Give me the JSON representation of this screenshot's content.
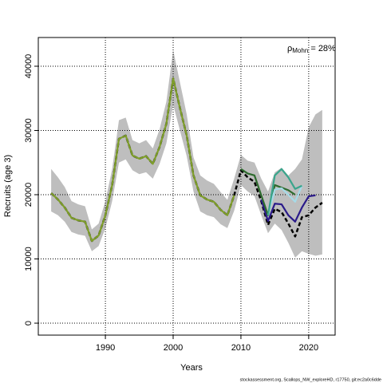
{
  "chart_data": {
    "type": "line",
    "ylabel": "Recruits (age 3)",
    "xlabel": "Years",
    "annotation": {
      "symbol": "ρ",
      "subscript": "Mohn",
      "text": " = 28%"
    },
    "footer": "stockassessment.org, Scallops_NW_exploreHD, r17750, git:ec2a0c6dde",
    "xlim": [
      1980.1,
      2023.9
    ],
    "ylim": [
      -1860,
      44470
    ],
    "xticks": [
      1990,
      2000,
      2010,
      2020
    ],
    "yticks": [
      0,
      10000,
      20000,
      30000,
      40000
    ],
    "grid": true,
    "x": [
      1982,
      1983,
      1984,
      1985,
      1986,
      1987,
      1988,
      1989,
      1990,
      1991,
      1992,
      1993,
      1994,
      1995,
      1996,
      1997,
      1998,
      1999,
      2000,
      2001,
      2002,
      2003,
      2004,
      2005,
      2006,
      2007,
      2008,
      2009,
      2010,
      2011,
      2012,
      2013,
      2014,
      2015,
      2016,
      2017,
      2018,
      2019,
      2020,
      2021,
      2022
    ],
    "band": {
      "color": "#bebebe",
      "lower": [
        17400,
        16800,
        15800,
        14200,
        13800,
        13600,
        11200,
        12000,
        14800,
        19000,
        25000,
        25500,
        23800,
        23200,
        23500,
        22500,
        24800,
        28000,
        34000,
        30000,
        26000,
        20500,
        17400,
        16800,
        16500,
        15400,
        14800,
        17500,
        21500,
        20500,
        19800,
        16800,
        14000,
        15500,
        14500,
        12500,
        10200,
        11200,
        10800,
        10500,
        10700
      ],
      "upper": [
        24000,
        22700,
        21200,
        19000,
        18500,
        18200,
        14600,
        15500,
        19000,
        24000,
        31600,
        32000,
        28500,
        28000,
        28500,
        27200,
        30200,
        34500,
        42500,
        37500,
        32500,
        25800,
        23000,
        22200,
        21700,
        20400,
        19200,
        22500,
        26200,
        25300,
        25000,
        22500,
        20500,
        23500,
        24200,
        23000,
        24000,
        25500,
        30500,
        32500,
        33200
      ]
    },
    "values": [
      20250,
      19250,
      18000,
      16400,
      16000,
      15800,
      12800,
      13650,
      16800,
      21500,
      28700,
      29200,
      26100,
      25600,
      26000,
      24800,
      27450,
      31050,
      38100,
      33500,
      29200,
      23000,
      19900,
      19250,
      18900,
      17650,
      16800,
      19900,
      23800,
      22700,
      22000,
      19000,
      15300,
      17800,
      17300,
      15500,
      13500,
      16500,
      16800,
      18000,
      18750
    ],
    "color": "#000000",
    "dashed": true,
    "series": [
      {
        "color": "#2a1a8a",
        "x": [
          2013,
          2014,
          2015,
          2016,
          2017,
          2018,
          2019,
          2020,
          2021
        ],
        "values": [
          19250,
          15900,
          18600,
          18500,
          16800,
          15800,
          18000,
          19750,
          19900
        ]
      },
      {
        "color": "#2e6b2e",
        "x": [
          2010,
          2011,
          2012,
          2013,
          2014,
          2015,
          2016,
          2017,
          2018
        ],
        "values": [
          24000,
          23300,
          23000,
          19900,
          16800,
          21500,
          21100,
          20700,
          20000
        ]
      },
      {
        "color": "#a6dbe8",
        "x": [
          2014,
          2015,
          2016,
          2017,
          2018,
          2019
        ],
        "values": [
          16800,
          20800,
          21000,
          20000,
          18900,
          21400
        ]
      },
      {
        "color": "#3aa58c",
        "x": [
          2014,
          2015,
          2016,
          2017,
          2018,
          2019
        ],
        "values": [
          16800,
          23000,
          24000,
          22700,
          20900,
          21400
        ]
      },
      {
        "color": "#7f9f2a",
        "x": [
          1982,
          1983,
          1984,
          1985,
          1986,
          1987,
          1988,
          1989,
          1990,
          1991,
          1992,
          1993,
          1994,
          1995,
          1996,
          1997,
          1998,
          1999,
          2000,
          2001,
          2002,
          2003,
          2004,
          2005,
          2006,
          2007,
          2008,
          2009
        ],
        "values": [
          20250,
          19250,
          18000,
          16400,
          16000,
          15800,
          12800,
          13650,
          16800,
          21500,
          28700,
          29200,
          26100,
          25600,
          26000,
          24800,
          27450,
          31050,
          38100,
          33500,
          29200,
          23000,
          19900,
          19250,
          18900,
          17650,
          16800,
          19900
        ]
      }
    ]
  }
}
